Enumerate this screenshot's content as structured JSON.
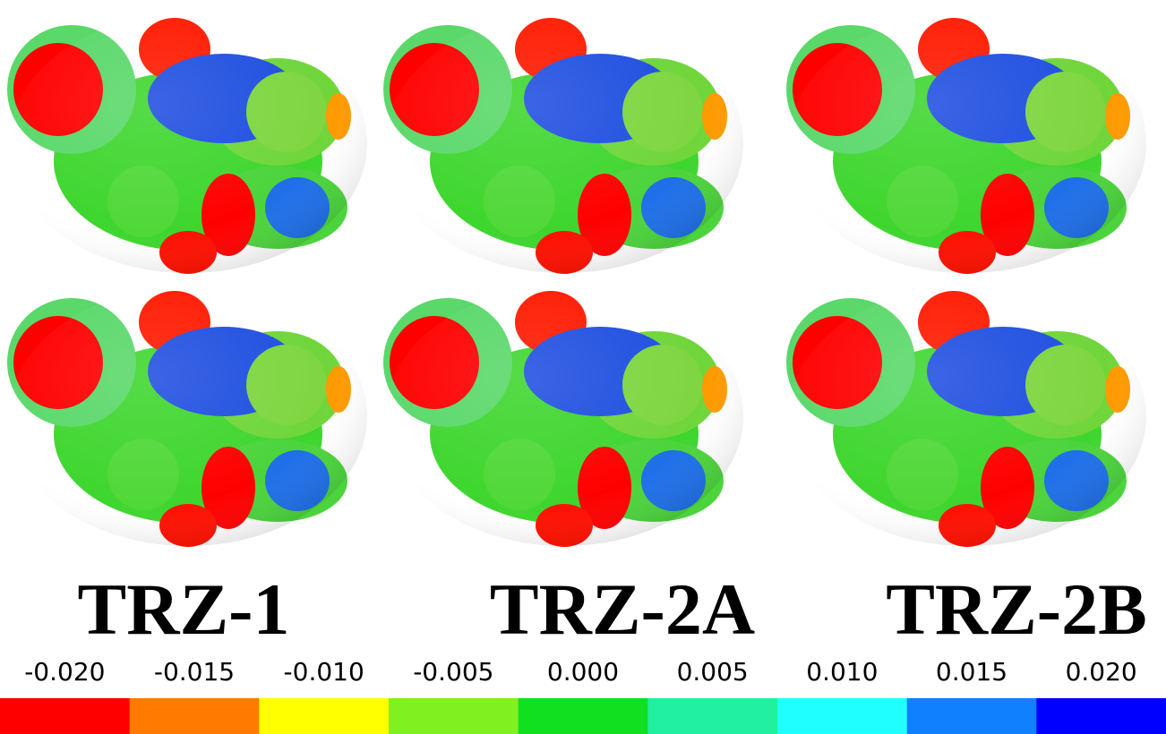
{
  "panels": [
    {
      "label": "TRZ-1"
    },
    {
      "label": "TRZ-2A"
    },
    {
      "label": "TRZ-2B"
    }
  ],
  "colorbar": {
    "ticks": [
      "-0.020",
      "-0.015",
      "-0.010",
      "-0.005",
      "0.000",
      "0.005",
      "0.010",
      "0.015",
      "0.020"
    ],
    "colors": [
      "#ff0000",
      "#ff7a00",
      "#ffff00",
      "#80f020",
      "#10e020",
      "#20f0a0",
      "#20ffff",
      "#1080ff",
      "#0000ff"
    ]
  }
}
